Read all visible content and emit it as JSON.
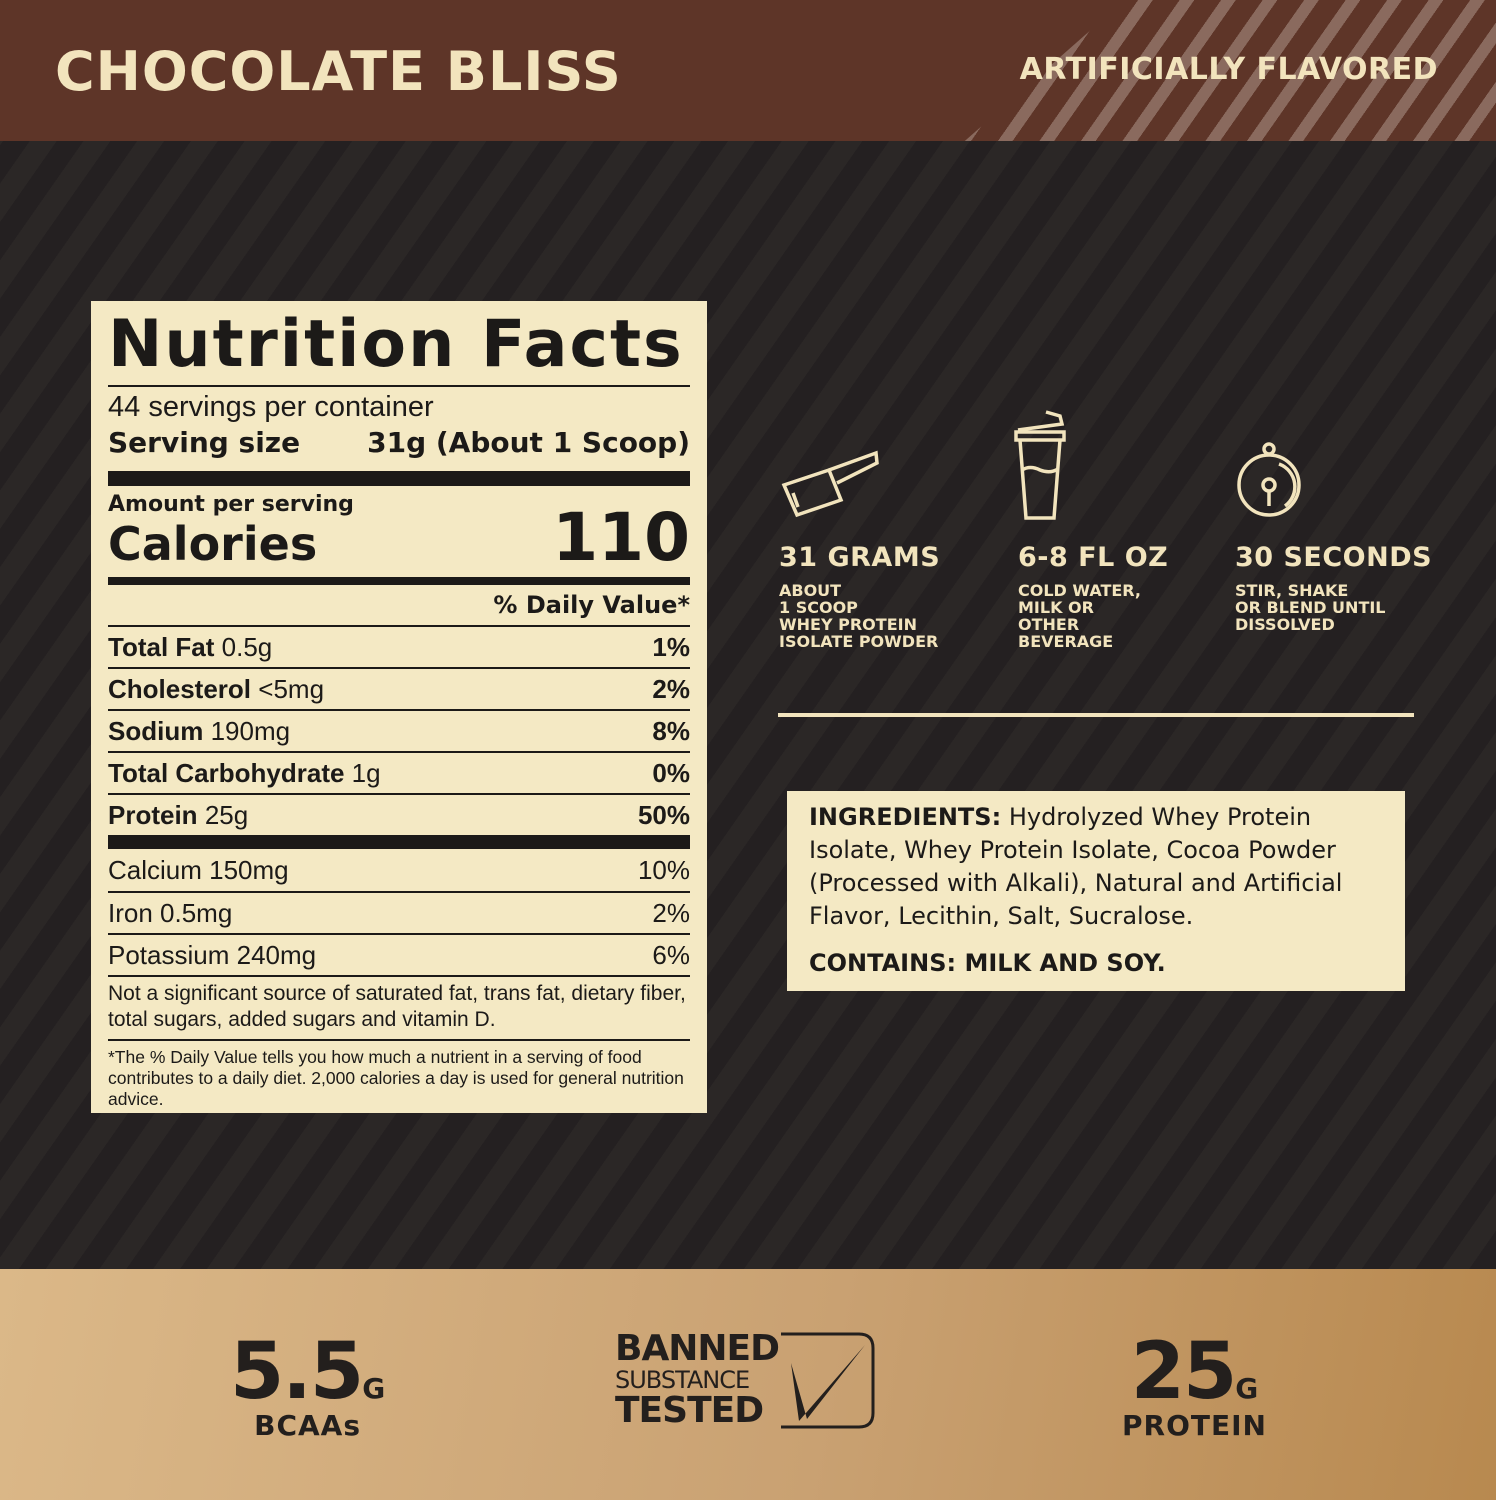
{
  "header": {
    "title": "CHOCOLATE BLISS",
    "flavor": "ARTIFICIALLY FLAVORED"
  },
  "colors": {
    "header": "#5e3528",
    "cream": "#f4e9c4",
    "dark": "#231f1d",
    "tan": "#c9a172"
  },
  "nutrition": {
    "title": "Nutrition Facts",
    "servings": "44 servings per container",
    "serving_size_label": "Serving size",
    "serving_size_value": "31g (About 1 Scoop)",
    "amount_per_serving": "Amount per serving",
    "calories_label": "Calories",
    "calories_value": "110",
    "dv_header": "% Daily Value*",
    "rows": [
      {
        "name": "Total Fat",
        "amount": "0.5g",
        "dv": "1%"
      },
      {
        "name": "Cholesterol",
        "amount": "<5mg",
        "dv": "2%"
      },
      {
        "name": "Sodium",
        "amount": "190mg",
        "dv": "8%"
      },
      {
        "name": "Total Carbohydrate",
        "amount": "1g",
        "dv": "0%"
      },
      {
        "name": "Protein",
        "amount": "25g",
        "dv": "50%"
      }
    ],
    "minerals": [
      {
        "name": "Calcium 150mg",
        "dv": "10%"
      },
      {
        "name": "Iron 0.5mg",
        "dv": "2%"
      },
      {
        "name": "Potassium 240mg",
        "dv": "6%"
      }
    ],
    "not_significant": "Not a significant source of saturated fat, trans fat, dietary fiber, total sugars, added sugars and vitamin D.",
    "footnote": "*The % Daily Value tells you how much a nutrient in a serving of food contributes to a daily diet. 2,000 calories a day is used for general nutrition advice."
  },
  "prep": [
    {
      "icon": "scoop-icon",
      "head": "31 GRAMS",
      "sub": "ABOUT\n1 SCOOP\nWHEY PROTEIN\nISOLATE POWDER"
    },
    {
      "icon": "shaker-icon",
      "head": "6-8 FL OZ",
      "sub": "COLD WATER,\nMILK OR\nOTHER\nBEVERAGE"
    },
    {
      "icon": "stopwatch-icon",
      "head": "30 SECONDS",
      "sub": "STIR, SHAKE\nOR BLEND UNTIL\nDISSOLVED"
    }
  ],
  "ingredients": {
    "label": "INGREDIENTS:",
    "text": " Hydrolyzed Whey Protein Isolate, Whey Protein Isolate, Cocoa Powder (Processed with Alkali), Natural and Artificial Flavor, Lecithin, Salt, Sucralose.",
    "contains": "CONTAINS: MILK AND SOY."
  },
  "stats": {
    "bcaa": {
      "value": "5.5",
      "unit": "G",
      "label": "BCAAs"
    },
    "banned": {
      "line1": "BANNED",
      "line2": "SUBSTANCE",
      "line3": "TESTED"
    },
    "protein": {
      "value": "25",
      "unit": "G",
      "label": "PROTEIN"
    }
  }
}
